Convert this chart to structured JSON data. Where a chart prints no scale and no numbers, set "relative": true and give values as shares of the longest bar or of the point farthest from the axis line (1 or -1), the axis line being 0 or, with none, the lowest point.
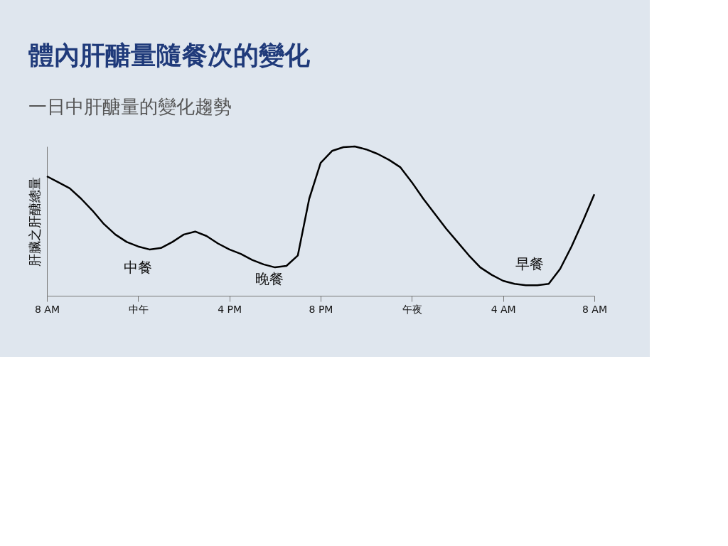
{
  "chart_data": {
    "type": "line",
    "title": "體內肝醣量隨餐次的變化",
    "subtitle": "一日中肝醣量的變化趨勢",
    "ylabel": "肝臟之肝醣總量",
    "relative": true,
    "categories": [
      "8 AM",
      null,
      null,
      null,
      null,
      null,
      null,
      null,
      "中午",
      null,
      null,
      null,
      null,
      null,
      null,
      null,
      "4 PM",
      null,
      null,
      null,
      null,
      null,
      null,
      null,
      "8 PM",
      null,
      null,
      null,
      null,
      null,
      null,
      null,
      "午夜",
      null,
      null,
      null,
      null,
      null,
      null,
      null,
      "4 AM",
      null,
      null,
      null,
      null,
      null,
      null,
      null,
      "8 AM"
    ],
    "series": [
      {
        "color": "#000000",
        "values": [
          0.8,
          0.76,
          0.72,
          0.65,
          0.57,
          0.48,
          0.41,
          0.36,
          0.33,
          0.31,
          0.32,
          0.36,
          0.41,
          0.43,
          0.4,
          0.35,
          0.31,
          0.28,
          0.24,
          0.21,
          0.19,
          0.2,
          0.27,
          0.65,
          0.89,
          0.97,
          0.995,
          1.0,
          0.98,
          0.95,
          0.91,
          0.86,
          0.76,
          0.65,
          0.55,
          0.45,
          0.36,
          0.27,
          0.19,
          0.14,
          0.1,
          0.08,
          0.07,
          0.07,
          0.08,
          0.18,
          0.33,
          0.5,
          0.68
        ]
      }
    ],
    "annotations": [
      "中餐",
      "晚餐",
      "早餐"
    ],
    "grid": false,
    "marker": "none",
    "line_style": "solid"
  }
}
